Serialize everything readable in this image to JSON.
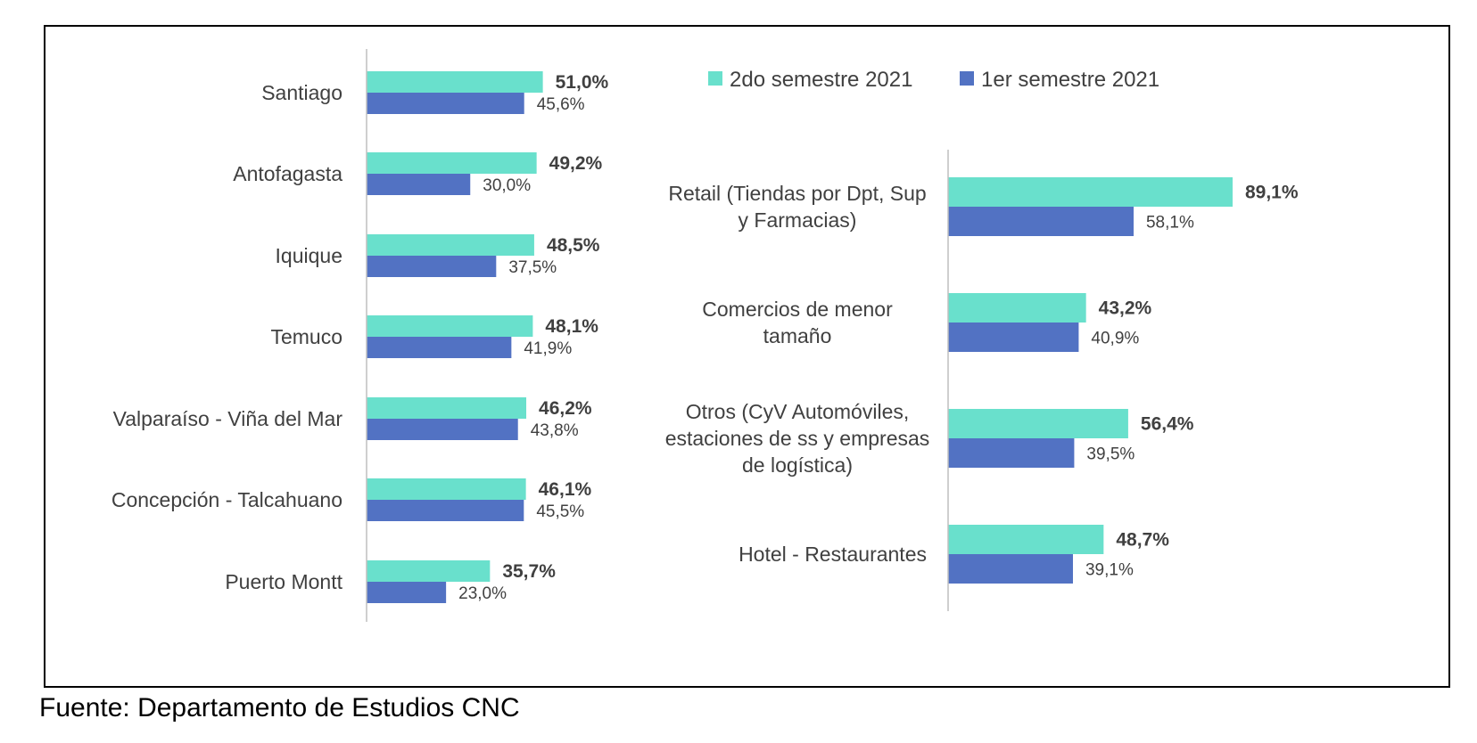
{
  "source_note": "Fuente: Departamento de Estudios CNC",
  "colors": {
    "series1": "#69E0CC",
    "series2": "#5272C3",
    "axis": "#BFBFBF",
    "text": "#404040"
  },
  "legend": [
    {
      "name": "2do semestre 2021",
      "color": "#69E0CC"
    },
    {
      "name": "1er semestre 2021",
      "color": "#5272C3"
    }
  ],
  "chart_data": [
    {
      "type": "bar",
      "orientation": "horizontal",
      "categories": [
        [
          "Santiago"
        ],
        [
          "Antofagasta"
        ],
        [
          "Iquique"
        ],
        [
          "Temuco"
        ],
        [
          "Valparaíso - Viña del Mar"
        ],
        [
          "Concepción - Talcahuano"
        ],
        [
          "Puerto Montt"
        ]
      ],
      "series": [
        {
          "name": "2do semestre 2021",
          "values": [
            51.0,
            49.2,
            48.5,
            48.1,
            46.2,
            46.1,
            35.7
          ],
          "labels": [
            "51,0%",
            "49,2%",
            "48,5%",
            "48,1%",
            "46,2%",
            "46,1%",
            "35,7%"
          ]
        },
        {
          "name": "1er semestre 2021",
          "values": [
            45.6,
            30.0,
            37.5,
            41.9,
            43.8,
            45.5,
            23.0
          ],
          "labels": [
            "45,6%",
            "30,0%",
            "37,5%",
            "41,9%",
            "43,8%",
            "45,5%",
            "23,0%"
          ]
        }
      ],
      "xlim": [
        0,
        100
      ],
      "grid": false,
      "legend_position": "top-right"
    },
    {
      "type": "bar",
      "orientation": "horizontal",
      "categories": [
        [
          "Retail (Tiendas por Dpt, Sup",
          "y Farmacias)"
        ],
        [
          "Comercios de menor",
          "tamaño"
        ],
        [
          "Otros (CyV Automóviles,",
          "estaciones de ss y empresas",
          "de logística)"
        ],
        [
          "Hotel - Restaurantes"
        ]
      ],
      "series": [
        {
          "name": "2do semestre 2021",
          "values": [
            89.1,
            43.2,
            56.4,
            48.7
          ],
          "labels": [
            "89,1%",
            "43,2%",
            "56,4%",
            "48,7%"
          ]
        },
        {
          "name": "1er semestre 2021",
          "values": [
            58.1,
            40.9,
            39.5,
            39.1
          ],
          "labels": [
            "58,1%",
            "40,9%",
            "39,5%",
            "39,1%"
          ]
        }
      ],
      "xlim": [
        0,
        100
      ],
      "grid": false
    }
  ]
}
